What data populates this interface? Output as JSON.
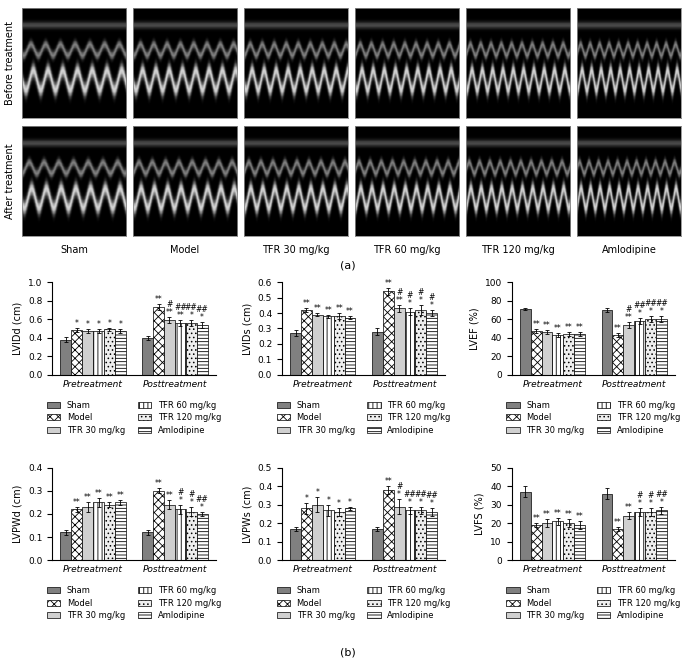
{
  "images": {
    "label": "(a)",
    "row_labels": [
      "Before treatment",
      "After treatment"
    ],
    "column_labels": [
      "Sham",
      "Model",
      "TFR 30 mg/kg",
      "TFR 60 mg/kg",
      "TFR 120 mg/kg",
      "Amlodipine"
    ]
  },
  "charts_label": "(b)",
  "chart_data": [
    {
      "type": "bar",
      "y_label": "LVIDd (cm)",
      "categories": [
        "Pretreatment",
        "Posttreatment"
      ],
      "ylim": [
        0,
        1.0
      ],
      "yticks": [
        {
          "value": 0,
          "label": "0.0"
        },
        0.2,
        0.4,
        0.6,
        0.8,
        {
          "value": 1.0,
          "label": "1.0"
        }
      ],
      "legend": "bottom",
      "series": [
        {
          "name": "Sham",
          "color": "#808080",
          "values": [
            0.38,
            0.4
          ],
          "errors": [
            0.03,
            0.02
          ],
          "marks": [
            null,
            null
          ]
        },
        {
          "name": "Model",
          "color": "#ffffff",
          "values": [
            0.48,
            0.73
          ],
          "errors": [
            0.02,
            0.03
          ],
          "marks": [
            "*",
            "**"
          ]
        },
        {
          "name": "TFR 30 mg/kg",
          "color": "#d0d0d0",
          "values": [
            0.47,
            0.59
          ],
          "errors": [
            0.02,
            0.03
          ],
          "marks": [
            "*",
            "#\n**"
          ]
        },
        {
          "name": "TFR 60 mg/kg",
          "color": "#ffffff",
          "values": [
            0.47,
            0.56
          ],
          "errors": [
            0.02,
            0.03
          ],
          "marks": [
            "*",
            "##\n**"
          ]
        },
        {
          "name": "TFR 120 mg/kg",
          "color": "#eeeeee",
          "values": [
            0.49,
            0.56
          ],
          "errors": [
            0.02,
            0.03
          ],
          "marks": [
            "*",
            "##\n*"
          ]
        },
        {
          "name": "Amlodipine",
          "color": "#ffffff",
          "values": [
            0.47,
            0.54
          ],
          "errors": [
            0.02,
            0.03
          ],
          "marks": [
            "*",
            "##\n*"
          ]
        }
      ]
    },
    {
      "type": "bar",
      "y_label": "LVIDs (cm)",
      "categories": [
        "Pretreatment",
        "Posttreatment"
      ],
      "ylim": [
        0,
        0.6
      ],
      "yticks": [
        {
          "value": 0,
          "label": "0.0"
        },
        0.1,
        0.2,
        0.3,
        0.4,
        0.5,
        0.6
      ],
      "legend": "bottom",
      "series": [
        {
          "name": "Sham",
          "color": "#808080",
          "values": [
            0.27,
            0.28
          ],
          "errors": [
            0.02,
            0.02
          ],
          "marks": [
            null,
            null
          ]
        },
        {
          "name": "Model",
          "color": "#ffffff",
          "values": [
            0.42,
            0.54
          ],
          "errors": [
            0.01,
            0.02
          ],
          "marks": [
            "**",
            "**"
          ]
        },
        {
          "name": "TFR 30 mg/kg",
          "color": "#d0d0d0",
          "values": [
            0.39,
            0.43
          ],
          "errors": [
            0.01,
            0.02
          ],
          "marks": [
            "**",
            "#\n**"
          ]
        },
        {
          "name": "TFR 60 mg/kg",
          "color": "#ffffff",
          "values": [
            0.38,
            0.41
          ],
          "errors": [
            0.01,
            0.02
          ],
          "marks": [
            "**",
            "#\n*"
          ]
        },
        {
          "name": "TFR 120 mg/kg",
          "color": "#eeeeee",
          "values": [
            0.38,
            0.42
          ],
          "errors": [
            0.02,
            0.03
          ],
          "marks": [
            "**",
            "#\n*"
          ]
        },
        {
          "name": "Amlodipine",
          "color": "#ffffff",
          "values": [
            0.37,
            0.4
          ],
          "errors": [
            0.01,
            0.02
          ],
          "marks": [
            "**",
            "#\n*"
          ]
        }
      ]
    },
    {
      "type": "bar",
      "y_label": "LVEF (%)",
      "categories": [
        "Pretreatment",
        "Posttreatment"
      ],
      "ylim": [
        0,
        100
      ],
      "yticks": [
        0,
        20,
        40,
        60,
        80,
        100
      ],
      "legend": "bottom",
      "series": [
        {
          "name": "Sham",
          "color": "#808080",
          "values": [
            71,
            70
          ],
          "errors": [
            1,
            2
          ],
          "marks": [
            null,
            null
          ]
        },
        {
          "name": "Model",
          "color": "#ffffff",
          "values": [
            47,
            43
          ],
          "errors": [
            2,
            2
          ],
          "marks": [
            "**",
            "**"
          ]
        },
        {
          "name": "TFR 30 mg/kg",
          "color": "#d0d0d0",
          "values": [
            46,
            54
          ],
          "errors": [
            2,
            3
          ],
          "marks": [
            "**",
            "#\n**"
          ]
        },
        {
          "name": "TFR 60 mg/kg",
          "color": "#ffffff",
          "values": [
            43,
            58
          ],
          "errors": [
            2,
            3
          ],
          "marks": [
            "**",
            "##\n*"
          ]
        },
        {
          "name": "TFR 120 mg/kg",
          "color": "#eeeeee",
          "values": [
            44,
            60
          ],
          "errors": [
            2,
            3
          ],
          "marks": [
            "**",
            "##\n*"
          ]
        },
        {
          "name": "Amlodipine",
          "color": "#ffffff",
          "values": [
            44,
            60
          ],
          "errors": [
            2,
            3
          ],
          "marks": [
            "**",
            "##\n*"
          ]
        }
      ]
    },
    {
      "type": "bar",
      "y_label": "LVPWd (cm)",
      "categories": [
        "Pretreatment",
        "Posttreatment"
      ],
      "ylim": [
        0,
        0.4
      ],
      "yticks": [
        {
          "value": 0,
          "label": "0.0"
        },
        0.1,
        0.2,
        0.3,
        0.4
      ],
      "legend": "bottom",
      "series": [
        {
          "name": "Sham",
          "color": "#808080",
          "values": [
            0.12,
            0.12
          ],
          "errors": [
            0.01,
            0.01
          ],
          "marks": [
            null,
            null
          ]
        },
        {
          "name": "Model",
          "color": "#ffffff",
          "values": [
            0.22,
            0.3
          ],
          "errors": [
            0.01,
            0.01
          ],
          "marks": [
            "**",
            "**"
          ]
        },
        {
          "name": "TFR 30 mg/kg",
          "color": "#d0d0d0",
          "values": [
            0.23,
            0.24
          ],
          "errors": [
            0.02,
            0.02
          ],
          "marks": [
            "**",
            "**"
          ]
        },
        {
          "name": "TFR 60 mg/kg",
          "color": "#ffffff",
          "values": [
            0.25,
            0.22
          ],
          "errors": [
            0.02,
            0.02
          ],
          "marks": [
            "**",
            "#\n*"
          ]
        },
        {
          "name": "TFR 120 mg/kg",
          "color": "#eeeeee",
          "values": [
            0.24,
            0.21
          ],
          "errors": [
            0.01,
            0.02
          ],
          "marks": [
            "**",
            "#\n*"
          ]
        },
        {
          "name": "Amlodipine",
          "color": "#ffffff",
          "values": [
            0.25,
            0.2
          ],
          "errors": [
            0.01,
            0.01
          ],
          "marks": [
            "**",
            "##\n*"
          ]
        }
      ]
    },
    {
      "type": "bar",
      "y_label": "LVPWs (cm)",
      "categories": [
        "Pretreatment",
        "Posttreatment"
      ],
      "ylim": [
        0,
        0.5
      ],
      "yticks": [
        {
          "value": 0,
          "label": "0.0"
        },
        0.1,
        0.2,
        0.3,
        0.4,
        0.5
      ],
      "legend": "bottom",
      "series": [
        {
          "name": "Sham",
          "color": "#808080",
          "values": [
            0.17,
            0.17
          ],
          "errors": [
            0.01,
            0.01
          ],
          "marks": [
            null,
            null
          ]
        },
        {
          "name": "Model",
          "color": "#ffffff",
          "values": [
            0.28,
            0.38
          ],
          "errors": [
            0.03,
            0.02
          ],
          "marks": [
            "*",
            "**"
          ]
        },
        {
          "name": "TFR 30 mg/kg",
          "color": "#d0d0d0",
          "values": [
            0.3,
            0.29
          ],
          "errors": [
            0.04,
            0.04
          ],
          "marks": [
            "*",
            "#\n*"
          ]
        },
        {
          "name": "TFR 60 mg/kg",
          "color": "#ffffff",
          "values": [
            0.27,
            0.27
          ],
          "errors": [
            0.03,
            0.02
          ],
          "marks": [
            "*",
            "##\n*"
          ]
        },
        {
          "name": "TFR 120 mg/kg",
          "color": "#eeeeee",
          "values": [
            0.26,
            0.27
          ],
          "errors": [
            0.02,
            0.02
          ],
          "marks": [
            "*",
            "##\n*"
          ]
        },
        {
          "name": "Amlodipine",
          "color": "#ffffff",
          "values": [
            0.28,
            0.26
          ],
          "errors": [
            0.01,
            0.02
          ],
          "marks": [
            "*",
            "##\n*"
          ]
        }
      ]
    },
    {
      "type": "bar",
      "y_label": "LVFS (%)",
      "categories": [
        "Pretreatment",
        "Posttreatment"
      ],
      "ylim": [
        0,
        50
      ],
      "yticks": [
        0,
        10,
        20,
        30,
        40,
        50
      ],
      "legend": "bottom",
      "series": [
        {
          "name": "Sham",
          "color": "#808080",
          "values": [
            37,
            36
          ],
          "errors": [
            3,
            3
          ],
          "marks": [
            null,
            null
          ]
        },
        {
          "name": "Model",
          "color": "#ffffff",
          "values": [
            19,
            17
          ],
          "errors": [
            1,
            1
          ],
          "marks": [
            "**",
            "**"
          ]
        },
        {
          "name": "TFR 30 mg/kg",
          "color": "#d0d0d0",
          "values": [
            20,
            24
          ],
          "errors": [
            2,
            2
          ],
          "marks": [
            "**",
            "**"
          ]
        },
        {
          "name": "TFR 60 mg/kg",
          "color": "#ffffff",
          "values": [
            21,
            26
          ],
          "errors": [
            2,
            2
          ],
          "marks": [
            "**",
            "#\n*"
          ]
        },
        {
          "name": "TFR 120 mg/kg",
          "color": "#eeeeee",
          "values": [
            20,
            26
          ],
          "errors": [
            2,
            2
          ],
          "marks": [
            "**",
            "#\n*"
          ]
        },
        {
          "name": "Amlodipine",
          "color": "#ffffff",
          "values": [
            19,
            27
          ],
          "errors": [
            2,
            2
          ],
          "marks": [
            "**",
            "##\n*"
          ]
        }
      ]
    }
  ]
}
